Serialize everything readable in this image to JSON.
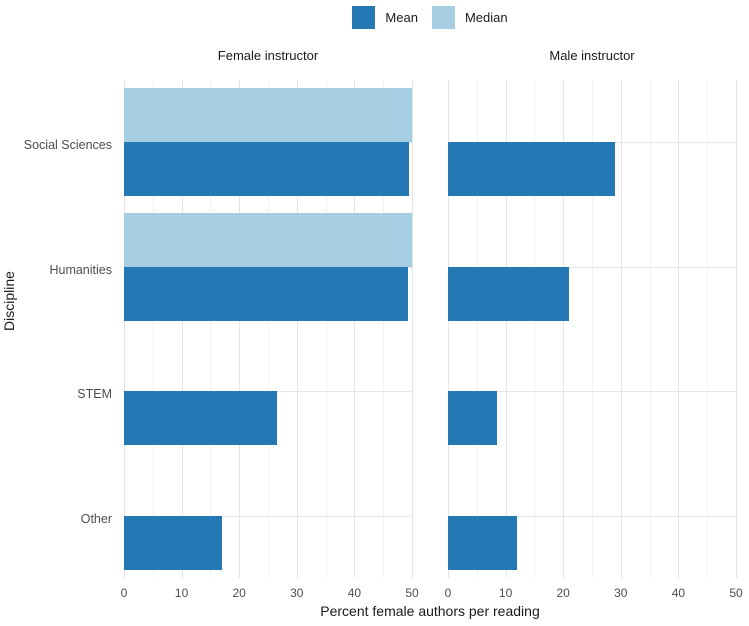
{
  "chart_data": {
    "type": "bar",
    "orientation": "horizontal",
    "xlabel": "Percent female authors per reading",
    "ylabel": "Discipline",
    "categories": [
      "Social Sciences",
      "Humanities",
      "STEM",
      "Other"
    ],
    "facets": [
      {
        "label": "Female instructor",
        "series": [
          {
            "name": "Mean",
            "values": [
              49.5,
              49.3,
              26.5,
              17
            ]
          },
          {
            "name": "Median",
            "values": [
              50,
              50,
              0,
              0
            ]
          }
        ]
      },
      {
        "label": "Male instructor",
        "series": [
          {
            "name": "Mean",
            "values": [
              29,
              21,
              8.5,
              12
            ]
          },
          {
            "name": "Median",
            "values": [
              0,
              0,
              0,
              0
            ]
          }
        ]
      }
    ],
    "xlim": [
      0,
      50
    ],
    "xticks": [
      0,
      10,
      20,
      30,
      40,
      50
    ],
    "minor_grid_step": 5,
    "grid": true,
    "legend": {
      "position": "top-center",
      "entries": [
        {
          "label": "Mean",
          "color": "#2478B4"
        },
        {
          "label": "Median",
          "color": "#A6CEE3"
        }
      ]
    },
    "colors": {
      "mean_bar": "#2478B4",
      "median_bar": "#A6CEE3",
      "grid_major": "#E4E4E4",
      "grid_minor": "#F1F1F1",
      "axis_text": "#4D4D4D",
      "title_text": "#1A1A1A"
    }
  }
}
